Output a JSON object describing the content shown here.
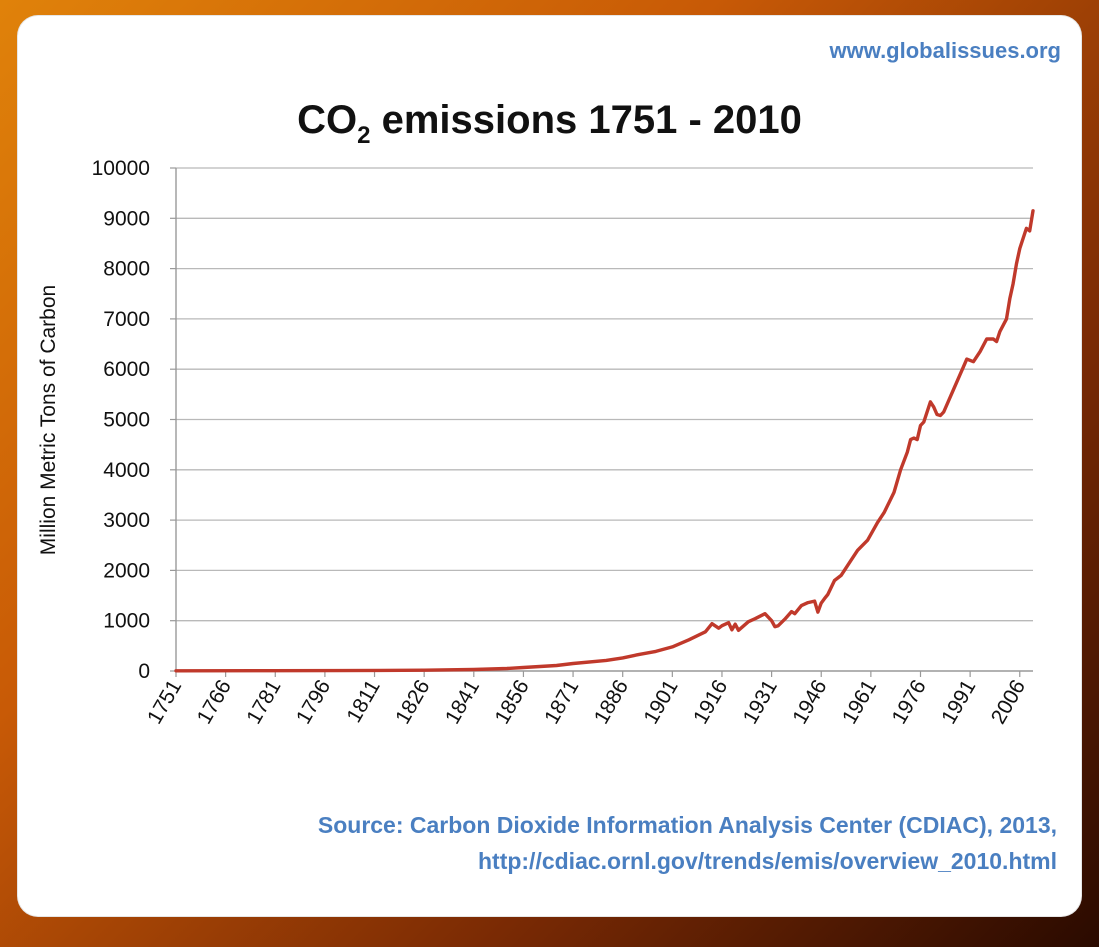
{
  "header": {
    "site_url": "www.globalissues.org",
    "title_prefix": "CO",
    "title_subscript": "2",
    "title_suffix": " emissions 1751 - 2010"
  },
  "source": {
    "line1": "Source: Carbon  Dioxide Information  Analysis Center (CDIAC), 2013,",
    "line2": "http://cdiac.ornl.gov/trends/emis/overview_2010.html"
  },
  "colors": {
    "line": "#c0392b",
    "grid": "#b9b9b9",
    "axis": "#999999",
    "text": "#111111",
    "accent": "#4a7fc1"
  },
  "chart_data": {
    "type": "line",
    "title": "CO2 emissions 1751 - 2010",
    "xlabel": "",
    "ylabel": "Million Metric Tons of Carbon",
    "xlim": [
      1751,
      2010
    ],
    "ylim": [
      0,
      10000
    ],
    "x_ticks": [
      1751,
      1766,
      1781,
      1796,
      1811,
      1826,
      1841,
      1856,
      1871,
      1886,
      1901,
      1916,
      1931,
      1946,
      1961,
      1976,
      1991,
      2006
    ],
    "y_ticks": [
      0,
      1000,
      2000,
      3000,
      4000,
      5000,
      6000,
      7000,
      8000,
      9000,
      10000
    ],
    "grid": true,
    "legend": "none",
    "series": [
      {
        "x": [
          1751,
          1780,
          1800,
          1826,
          1841,
          1851,
          1856,
          1866,
          1871,
          1881,
          1886,
          1891,
          1896,
          1901,
          1906,
          1911,
          1913,
          1915,
          1916,
          1918,
          1919,
          1920,
          1921,
          1924,
          1926,
          1929,
          1931,
          1932,
          1933,
          1935,
          1937,
          1938,
          1940,
          1942,
          1944,
          1945,
          1946,
          1947,
          1948,
          1950,
          1952,
          1955,
          1957,
          1960,
          1963,
          1965,
          1968,
          1970,
          1972,
          1973,
          1974,
          1975,
          1976,
          1977,
          1979,
          1980,
          1981,
          1982,
          1983,
          1986,
          1989,
          1990,
          1992,
          1994,
          1996,
          1998,
          1999,
          2000,
          2002,
          2003,
          2004,
          2005,
          2006,
          2007,
          2008,
          2009,
          2010
        ],
        "y": [
          3,
          5,
          8,
          15,
          30,
          50,
          70,
          110,
          150,
          210,
          260,
          330,
          390,
          480,
          620,
          780,
          940,
          850,
          900,
          960,
          820,
          930,
          810,
          980,
          1040,
          1140,
          1000,
          880,
          900,
          1030,
          1180,
          1140,
          1300,
          1360,
          1390,
          1170,
          1350,
          1440,
          1520,
          1800,
          1900,
          2200,
          2400,
          2600,
          2950,
          3150,
          3550,
          4000,
          4350,
          4600,
          4630,
          4600,
          4880,
          4950,
          5350,
          5250,
          5100,
          5080,
          5150,
          5600,
          6050,
          6200,
          6150,
          6350,
          6600,
          6600,
          6550,
          6750,
          7000,
          7400,
          7700,
          8100,
          8400,
          8600,
          8800,
          8750,
          9150
        ]
      }
    ]
  }
}
